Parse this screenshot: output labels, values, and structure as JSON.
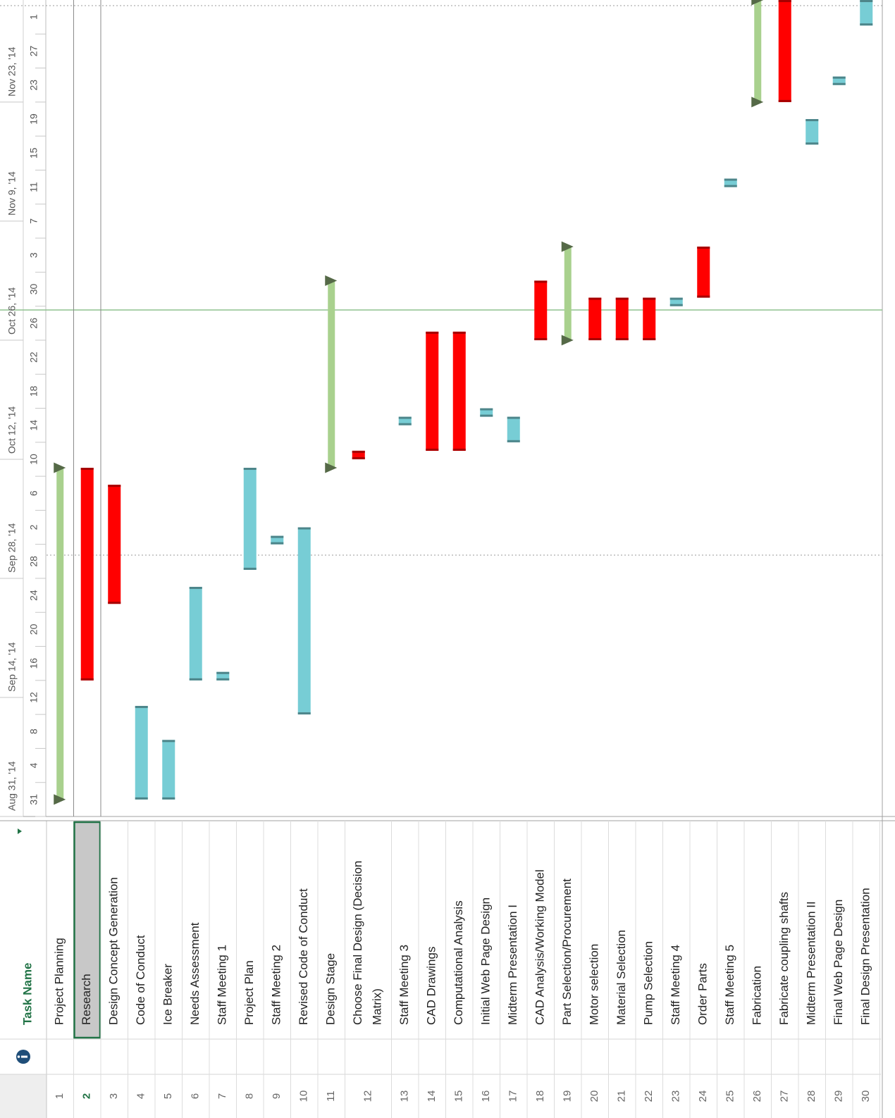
{
  "table": {
    "header": "Task Name"
  },
  "timeline": {
    "xlim": [
      "2014-08-31",
      "2014-12-05"
    ],
    "major_ticks": [
      {
        "value": "2014-08-31",
        "label": "Aug 31, '14"
      },
      {
        "value": "2014-09-14",
        "label": "Sep 14, '14"
      },
      {
        "value": "2014-09-28",
        "label": "Sep 28, '14"
      },
      {
        "value": "2014-10-12",
        "label": "Oct 12, '14"
      },
      {
        "value": "2014-10-26",
        "label": "Oct 26, '14"
      },
      {
        "value": "2014-11-09",
        "label": "Nov 9, '14"
      },
      {
        "value": "2014-11-23",
        "label": "Nov 23, '14"
      }
    ],
    "minor_ticks": [
      {
        "value": "2014-08-31",
        "label": "31"
      },
      {
        "value": "2014-09-04",
        "label": "4"
      },
      {
        "value": "2014-09-08",
        "label": "8"
      },
      {
        "value": "2014-09-12",
        "label": "12"
      },
      {
        "value": "2014-09-16",
        "label": "16"
      },
      {
        "value": "2014-09-20",
        "label": "20"
      },
      {
        "value": "2014-09-24",
        "label": "24"
      },
      {
        "value": "2014-09-28",
        "label": "28"
      },
      {
        "value": "2014-10-02",
        "label": "2"
      },
      {
        "value": "2014-10-06",
        "label": "6"
      },
      {
        "value": "2014-10-10",
        "label": "10"
      },
      {
        "value": "2014-10-14",
        "label": "14"
      },
      {
        "value": "2014-10-18",
        "label": "18"
      },
      {
        "value": "2014-10-22",
        "label": "22"
      },
      {
        "value": "2014-10-26",
        "label": "26"
      },
      {
        "value": "2014-10-30",
        "label": "30"
      },
      {
        "value": "2014-11-03",
        "label": "3"
      },
      {
        "value": "2014-11-07",
        "label": "7"
      },
      {
        "value": "2014-11-11",
        "label": "11"
      },
      {
        "value": "2014-11-15",
        "label": "15"
      },
      {
        "value": "2014-11-19",
        "label": "19"
      },
      {
        "value": "2014-11-23",
        "label": "23"
      },
      {
        "value": "2014-11-27",
        "label": "27"
      },
      {
        "value": "2014-12-01",
        "label": "1"
      }
    ]
  },
  "tasks": [
    {
      "id": 1,
      "name": "Project Planning",
      "start": "2014-09-02",
      "finish": "2014-10-10",
      "color": "#a9d18e",
      "summary": true
    },
    {
      "id": 2,
      "name": "Research",
      "start": "2014-09-16",
      "finish": "2014-10-10",
      "color": "#ff0000",
      "selected": true
    },
    {
      "id": 3,
      "name": "Design Concept Generation",
      "start": "2014-09-25",
      "finish": "2014-10-08",
      "color": "#ff0000"
    },
    {
      "id": 4,
      "name": "Code of Conduct",
      "start": "2014-09-02",
      "finish": "2014-09-12",
      "color": "#77cdd5"
    },
    {
      "id": 5,
      "name": "Ice Breaker",
      "start": "2014-09-02",
      "finish": "2014-09-08",
      "color": "#77cdd5"
    },
    {
      "id": 6,
      "name": "Needs Assessment",
      "start": "2014-09-16",
      "finish": "2014-09-26",
      "color": "#77cdd5"
    },
    {
      "id": 7,
      "name": "Staff Meeting 1",
      "start": "2014-09-16",
      "finish": "2014-09-16",
      "color": "#77cdd5"
    },
    {
      "id": 8,
      "name": "Project Plan",
      "start": "2014-09-29",
      "finish": "2014-10-10",
      "color": "#77cdd5"
    },
    {
      "id": 9,
      "name": "Staff Meeting 2",
      "start": "2014-10-02",
      "finish": "2014-10-02",
      "color": "#77cdd5"
    },
    {
      "id": 10,
      "name": "Revised Code of Conduct",
      "start": "2014-09-12",
      "finish": "2014-10-03",
      "color": "#77cdd5"
    },
    {
      "id": 11,
      "name": "Design Stage",
      "start": "2014-10-11",
      "finish": "2014-11-01",
      "color": "#a9d18e",
      "summary": true
    },
    {
      "id": 12,
      "name": "Choose Final Design (Decision Matrix)",
      "start": "2014-10-12",
      "finish": "2014-10-12",
      "color": "#ff0000"
    },
    {
      "id": 13,
      "name": "Staff Meeting 3",
      "start": "2014-10-16",
      "finish": "2014-10-16",
      "color": "#77cdd5"
    },
    {
      "id": 14,
      "name": "CAD Drawings",
      "start": "2014-10-13",
      "finish": "2014-10-26",
      "color": "#ff0000"
    },
    {
      "id": 15,
      "name": "Computational Analysis",
      "start": "2014-10-13",
      "finish": "2014-10-26",
      "color": "#ff0000"
    },
    {
      "id": 16,
      "name": "Initial Web Page Design",
      "start": "2014-10-17",
      "finish": "2014-10-17",
      "color": "#77cdd5"
    },
    {
      "id": 17,
      "name": "Midterm Presentation I",
      "start": "2014-10-14",
      "finish": "2014-10-16",
      "color": "#77cdd5"
    },
    {
      "id": 18,
      "name": "CAD Analysis/Working Model",
      "start": "2014-10-26",
      "finish": "2014-11-01",
      "color": "#ff0000"
    },
    {
      "id": 19,
      "name": "Part Selection/Procurement",
      "start": "2014-10-26",
      "finish": "2014-11-05",
      "color": "#a9d18e",
      "summary": true
    },
    {
      "id": 20,
      "name": "Motor selection",
      "start": "2014-10-26",
      "finish": "2014-10-30",
      "color": "#ff0000"
    },
    {
      "id": 21,
      "name": "Material Selection",
      "start": "2014-10-26",
      "finish": "2014-10-30",
      "color": "#ff0000"
    },
    {
      "id": 22,
      "name": "Pump Selection",
      "start": "2014-10-26",
      "finish": "2014-10-30",
      "color": "#ff0000"
    },
    {
      "id": 23,
      "name": "Staff Meeting 4",
      "start": "2014-10-30",
      "finish": "2014-10-30",
      "color": "#77cdd5"
    },
    {
      "id": 24,
      "name": "Order Parts",
      "start": "2014-10-31",
      "finish": "2014-11-05",
      "color": "#ff0000"
    },
    {
      "id": 25,
      "name": "Staff Meeting 5",
      "start": "2014-11-13",
      "finish": "2014-11-13",
      "color": "#77cdd5"
    },
    {
      "id": 26,
      "name": "Fabrication",
      "start": "2014-11-23",
      "finish": "2014-12-04",
      "color": "#a9d18e",
      "summary": true
    },
    {
      "id": 27,
      "name": "Fabricate coupling shafts",
      "start": "2014-11-23",
      "finish": "2014-12-04",
      "color": "#ff0000"
    },
    {
      "id": 28,
      "name": "Midterm Presentation II",
      "start": "2014-11-18",
      "finish": "2014-11-20",
      "color": "#77cdd5"
    },
    {
      "id": 29,
      "name": "Final Web Page Design",
      "start": "2014-11-25",
      "finish": "2014-11-25",
      "color": "#77cdd5"
    },
    {
      "id": 30,
      "name": "Final Design Presentation",
      "start": "2014-12-02",
      "finish": "2014-12-04",
      "color": "#77cdd5"
    }
  ]
}
